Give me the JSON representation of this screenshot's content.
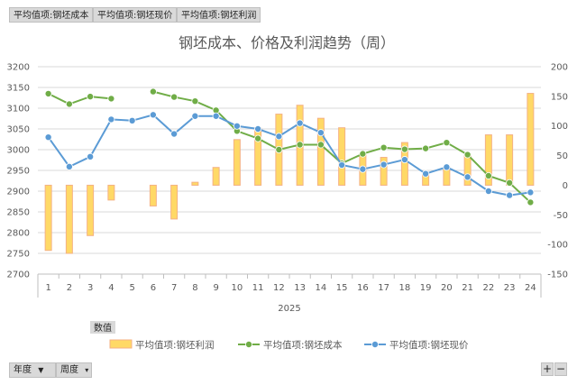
{
  "filter_buttons": [
    "平均值项:钢坯成本",
    "平均值项:钢坯现价",
    "平均值项:钢坯利润"
  ],
  "bottom_controls": {
    "year_label": "年度",
    "week_label": "周度",
    "values_label": "数值",
    "zoom_in": "+",
    "zoom_out": "−"
  },
  "colors": {
    "profit_fill": "#ffd966",
    "profit_stroke": "#f4b183",
    "cost_line": "#70ad47",
    "price_line": "#5b9bd5",
    "grid": "#d9d9d9"
  },
  "chart_data": {
    "type": "combo",
    "title": "钢坯成本、价格及利润趋势（周）",
    "xlabel": "2025",
    "categories": [
      "1",
      "2",
      "3",
      "4",
      "5",
      "6",
      "7",
      "8",
      "9",
      "10",
      "11",
      "12",
      "13",
      "14",
      "15",
      "16",
      "17",
      "18",
      "19",
      "20",
      "21",
      "22",
      "23",
      "24"
    ],
    "left_axis": {
      "ylim": [
        2700,
        3200
      ],
      "ticks": [
        2700,
        2750,
        2800,
        2850,
        2900,
        2950,
        3000,
        3050,
        3100,
        3150,
        3200
      ]
    },
    "right_axis": {
      "ylim": [
        -150,
        200
      ],
      "ticks": [
        -150,
        -100,
        -50,
        0,
        50,
        100,
        150,
        200
      ]
    },
    "legend_position": "bottom",
    "series": [
      {
        "name": "平均值项:钢坯利润",
        "type": "bar",
        "axis": "right",
        "values": [
          -110,
          -115,
          -85,
          -25,
          null,
          -35,
          -57,
          5,
          30,
          77,
          97,
          120,
          135,
          113,
          97,
          53,
          47,
          72,
          18,
          30,
          50,
          85,
          85,
          155
        ]
      },
      {
        "name": "平均值项:钢坯成本",
        "type": "line",
        "axis": "left",
        "values": [
          3135,
          3110,
          3128,
          3123,
          null,
          3140,
          3127,
          3117,
          3095,
          3045,
          3027,
          3000,
          3012,
          3012,
          2967,
          2990,
          3005,
          3001,
          3003,
          3017,
          2988,
          2937,
          2920,
          2873
        ]
      },
      {
        "name": "平均值项:钢坯现价",
        "type": "line",
        "axis": "left",
        "values": [
          3030,
          2959,
          2983,
          3073,
          3070,
          3084,
          3038,
          3081,
          3081,
          3057,
          3050,
          3032,
          3064,
          3041,
          2963,
          2953,
          2964,
          2976,
          2942,
          2958,
          2934,
          2900,
          2890,
          2897
        ]
      }
    ]
  }
}
